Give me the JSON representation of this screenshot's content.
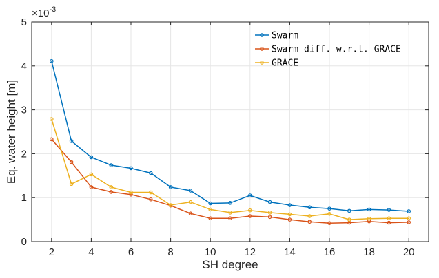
{
  "chart_data": {
    "type": "line",
    "xlabel": "SH degree",
    "ylabel": "Eq. water height [m]",
    "y_exponent_label": "×10",
    "y_exponent_power": "-3",
    "xlim": [
      1,
      21
    ],
    "ylim": [
      0,
      0.005
    ],
    "x_ticks": [
      2,
      4,
      6,
      8,
      10,
      12,
      14,
      16,
      18,
      20
    ],
    "y_ticks": [
      0,
      0.001,
      0.002,
      0.003,
      0.004,
      0.005
    ],
    "y_tick_labels": [
      "0",
      "1",
      "2",
      "3",
      "4",
      "5"
    ],
    "grid": true,
    "legend_position": "top-right",
    "x": [
      2,
      3,
      4,
      5,
      6,
      7,
      8,
      9,
      10,
      11,
      12,
      13,
      14,
      15,
      16,
      17,
      18,
      19,
      20
    ],
    "series": [
      {
        "name": "Swarm",
        "color": "#0072BD",
        "values": [
          0.00411,
          0.00229,
          0.00192,
          0.00174,
          0.00167,
          0.00156,
          0.00124,
          0.00116,
          0.00087,
          0.00088,
          0.00105,
          0.0009,
          0.00083,
          0.00078,
          0.00075,
          0.0007,
          0.00073,
          0.00072,
          0.00069
        ]
      },
      {
        "name": "Swarm diff. w.r.t. GRACE",
        "color": "#D95319",
        "values": [
          0.00233,
          0.00181,
          0.00124,
          0.00113,
          0.00107,
          0.00096,
          0.00082,
          0.00064,
          0.00053,
          0.00053,
          0.00058,
          0.00056,
          0.0005,
          0.00045,
          0.00042,
          0.00043,
          0.00046,
          0.00043,
          0.00044
        ]
      },
      {
        "name": "GRACE",
        "color": "#EDB120",
        "values": [
          0.00279,
          0.00131,
          0.00153,
          0.00124,
          0.00112,
          0.00112,
          0.00083,
          0.0009,
          0.00073,
          0.00066,
          0.00071,
          0.00066,
          0.00062,
          0.00058,
          0.00063,
          0.0005,
          0.00052,
          0.00053,
          0.00053
        ]
      }
    ]
  }
}
